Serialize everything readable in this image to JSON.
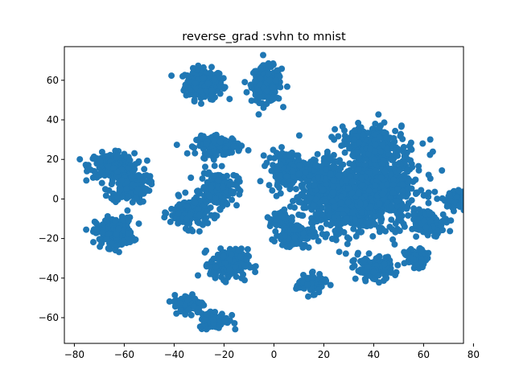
{
  "chart_data": {
    "type": "scatter",
    "title": "reverse_grad :svhn to mnist",
    "xlabel": "",
    "ylabel": "",
    "xlim": [
      -84,
      76
    ],
    "ylim": [
      -73,
      77
    ],
    "xticks": [
      -80,
      -60,
      -40,
      -20,
      0,
      20,
      40,
      60,
      80
    ],
    "yticks": [
      -60,
      -40,
      -20,
      0,
      20,
      40,
      60
    ],
    "grid": false,
    "legend": "none",
    "marker_color": "#1f77b4",
    "clusters": [
      {
        "center": [
          -28,
          58
        ],
        "spread": [
          5,
          5
        ],
        "count": 220
      },
      {
        "center": [
          -3,
          58
        ],
        "spread": [
          4,
          6
        ],
        "count": 200
      },
      {
        "center": [
          -65,
          17
        ],
        "spread": [
          6,
          4
        ],
        "count": 210
      },
      {
        "center": [
          -58,
          7
        ],
        "spread": [
          5,
          6
        ],
        "count": 170
      },
      {
        "center": [
          -64,
          -17
        ],
        "spread": [
          5,
          5
        ],
        "count": 190
      },
      {
        "center": [
          -22,
          27
        ],
        "spread": [
          6,
          3
        ],
        "count": 160
      },
      {
        "center": [
          -34,
          -7
        ],
        "spread": [
          5,
          5
        ],
        "count": 180
      },
      {
        "center": [
          -22,
          5
        ],
        "spread": [
          5,
          6
        ],
        "count": 150
      },
      {
        "center": [
          -18,
          -33
        ],
        "spread": [
          5,
          5
        ],
        "count": 180
      },
      {
        "center": [
          -34,
          -53
        ],
        "spread": [
          4,
          3
        ],
        "count": 110
      },
      {
        "center": [
          -24,
          -61
        ],
        "spread": [
          4,
          3
        ],
        "count": 100
      },
      {
        "center": [
          5,
          15
        ],
        "spread": [
          5,
          6
        ],
        "count": 140
      },
      {
        "center": [
          3,
          -10
        ],
        "spread": [
          3,
          3
        ],
        "count": 60
      },
      {
        "center": [
          28,
          0
        ],
        "spread": [
          12,
          12
        ],
        "count": 650
      },
      {
        "center": [
          45,
          8
        ],
        "spread": [
          10,
          14
        ],
        "count": 450
      },
      {
        "center": [
          38,
          28
        ],
        "spread": [
          8,
          6
        ],
        "count": 180
      },
      {
        "center": [
          15,
          -43
        ],
        "spread": [
          4,
          3
        ],
        "count": 90
      },
      {
        "center": [
          40,
          -35
        ],
        "spread": [
          5,
          4
        ],
        "count": 130
      },
      {
        "center": [
          57,
          -30
        ],
        "spread": [
          3,
          3
        ],
        "count": 70
      },
      {
        "center": [
          62,
          -12
        ],
        "spread": [
          5,
          4
        ],
        "count": 100
      },
      {
        "center": [
          74,
          0
        ],
        "spread": [
          4,
          3
        ],
        "count": 80
      },
      {
        "center": [
          20,
          12
        ],
        "spread": [
          4,
          6
        ],
        "count": 120
      },
      {
        "center": [
          8,
          -18
        ],
        "spread": [
          5,
          4
        ],
        "count": 120
      }
    ]
  }
}
